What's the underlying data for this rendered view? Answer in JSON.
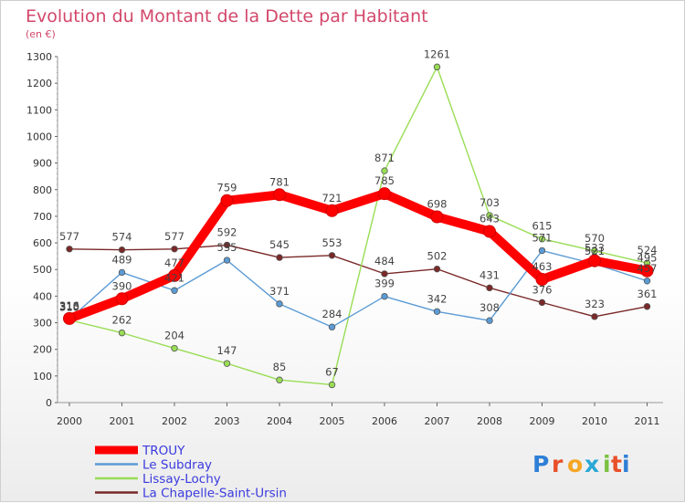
{
  "chart_data": {
    "type": "line",
    "title": "Evolution du Montant de la Dette par Habitant",
    "subtitle": "(en €)",
    "xlabel": "",
    "ylabel": "",
    "x": [
      "2000",
      "2001",
      "2002",
      "2003",
      "2004",
      "2005",
      "2006",
      "2007",
      "2008",
      "2009",
      "2010",
      "2011"
    ],
    "ylim": [
      0,
      1300
    ],
    "yticks": [
      0,
      100,
      200,
      300,
      400,
      500,
      600,
      700,
      800,
      900,
      1000,
      1100,
      1200,
      1300
    ],
    "grid": false,
    "legend_position": "bottom-left",
    "series": [
      {
        "name": "TROUY",
        "color": "#ff0000",
        "values": [
          316,
          390,
          477,
          759,
          781,
          721,
          785,
          698,
          643,
          463,
          533,
          495
        ]
      },
      {
        "name": "Le Subdray",
        "color": "#5b9bd5",
        "values": [
          313,
          489,
          421,
          535,
          371,
          284,
          399,
          342,
          308,
          571,
          521,
          457
        ]
      },
      {
        "name": "Lissay-Lochy",
        "color": "#99dd55",
        "values": [
          310,
          262,
          204,
          147,
          85,
          67,
          871,
          1261,
          703,
          615,
          570,
          524
        ]
      },
      {
        "name": "La Chapelle-Saint-Ursin",
        "color": "#7a2828",
        "values": [
          577,
          574,
          577,
          592,
          545,
          553,
          484,
          502,
          431,
          376,
          323,
          361
        ]
      }
    ]
  },
  "brand": {
    "letters": [
      "P",
      "r",
      "o",
      "x",
      "i",
      "t",
      "i"
    ],
    "colors": [
      "#2e7fd6",
      "#e8502a",
      "#f5a623",
      "#2aa8d6",
      "#7cc142",
      "#e8502a",
      "#2e7fd6"
    ]
  }
}
